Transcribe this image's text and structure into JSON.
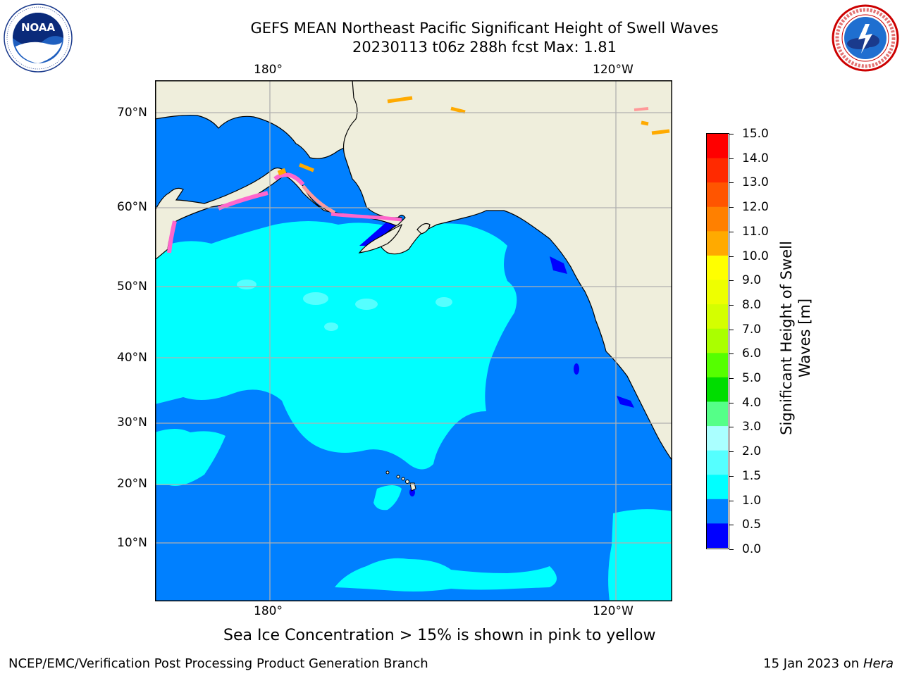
{
  "title": {
    "line1": "GEFS MEAN Northeast Pacific Significant Height of Swell Waves",
    "line2": "20230113 t06z 288h fcst   Max: 1.81"
  },
  "logos": {
    "noaa": {
      "text": "NOAA",
      "ring_text": "NATIONAL OCEANIC AND ATMOSPHERIC ADMINISTRATION · U.S. DEPARTMENT OF COMMERCE"
    },
    "nws": {
      "ring_text": "NATIONAL WEATHER SERVICE"
    }
  },
  "map": {
    "lon_labels_top": [
      "180°",
      "120°W"
    ],
    "lon_labels_bottom": [
      "180°",
      "120°W"
    ],
    "lat_labels": [
      "70°N",
      "60°N",
      "50°N",
      "40°N",
      "30°N",
      "20°N",
      "10°N"
    ],
    "colors": {
      "land": "#efeedc",
      "ocean_1_0": "#0080ff",
      "ocean_1_5": "#00ffff",
      "ocean_2_0": "#55ffff",
      "ocean_0_5": "#0000ff",
      "grid": "#b0b0b0"
    }
  },
  "colorbar": {
    "label": "Significant Height of Swell Waves [m]",
    "label_line1": "Significant Height of Swell",
    "label_line2": "Waves [m]",
    "ticks": [
      "15.0",
      "14.0",
      "13.0",
      "12.0",
      "11.0",
      "10.0",
      "9.0",
      "8.0",
      "7.0",
      "6.0",
      "5.0",
      "4.0",
      "3.0",
      "2.0",
      "1.5",
      "1.0",
      "0.5",
      "0.0"
    ],
    "colors": [
      "#ff0000",
      "#ff2a00",
      "#ff5500",
      "#ff8000",
      "#ffaa00",
      "#ffff00",
      "#eeff00",
      "#d4ff00",
      "#aaff00",
      "#55ff00",
      "#00dd00",
      "#55ff88",
      "#aaffff",
      "#55ffff",
      "#00ffff",
      "#0080ff",
      "#0000ff"
    ]
  },
  "note": "Sea Ice Concentration > 15% is shown in pink to yellow",
  "footer": {
    "left": "NCEP/EMC/Verification Post Processing Product Generation Branch",
    "right_date": "15 Jan 2023 on ",
    "right_host": "Hera"
  }
}
